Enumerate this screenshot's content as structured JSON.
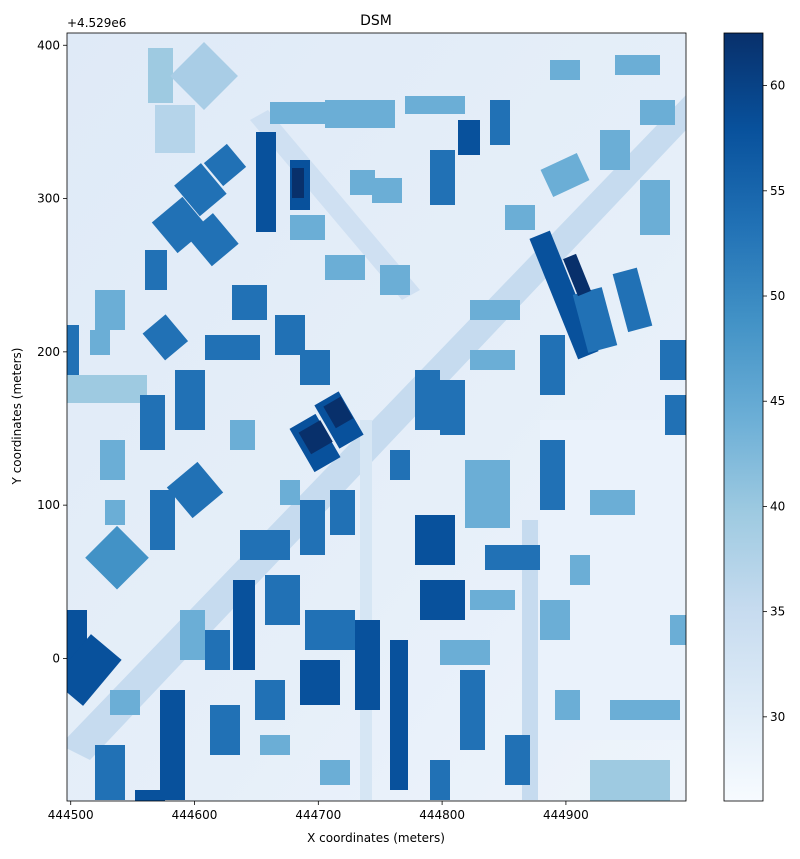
{
  "chart_data": {
    "type": "heatmap",
    "title": "DSM",
    "xlabel": "X coordinates (meters)",
    "ylabel": "Y coordinates (meters)",
    "x_range": [
      444497,
      444997
    ],
    "y_range": [
      4528907,
      4529408
    ],
    "y_offset_label": "+4.529e6",
    "x_ticks": [
      444500,
      444600,
      444700,
      444800,
      444900
    ],
    "x_tick_labels": [
      "444500",
      "444600",
      "444700",
      "444800",
      "444900"
    ],
    "y_ticks": [
      0,
      100,
      200,
      300,
      400
    ],
    "y_tick_labels": [
      "0",
      "100",
      "200",
      "300",
      "400"
    ],
    "colorbar": {
      "colormap": "Blues",
      "range": [
        26,
        62.5
      ],
      "ticks": [
        30,
        35,
        40,
        45,
        50,
        55,
        60
      ],
      "tick_labels": [
        "30",
        "35",
        "40",
        "45",
        "50",
        "55",
        "60"
      ]
    },
    "colors": {
      "ground": "#e4eef9",
      "road": "#c6dbef",
      "low": "#9ecae1",
      "mid": "#4292c6",
      "high": "#08519c"
    }
  }
}
